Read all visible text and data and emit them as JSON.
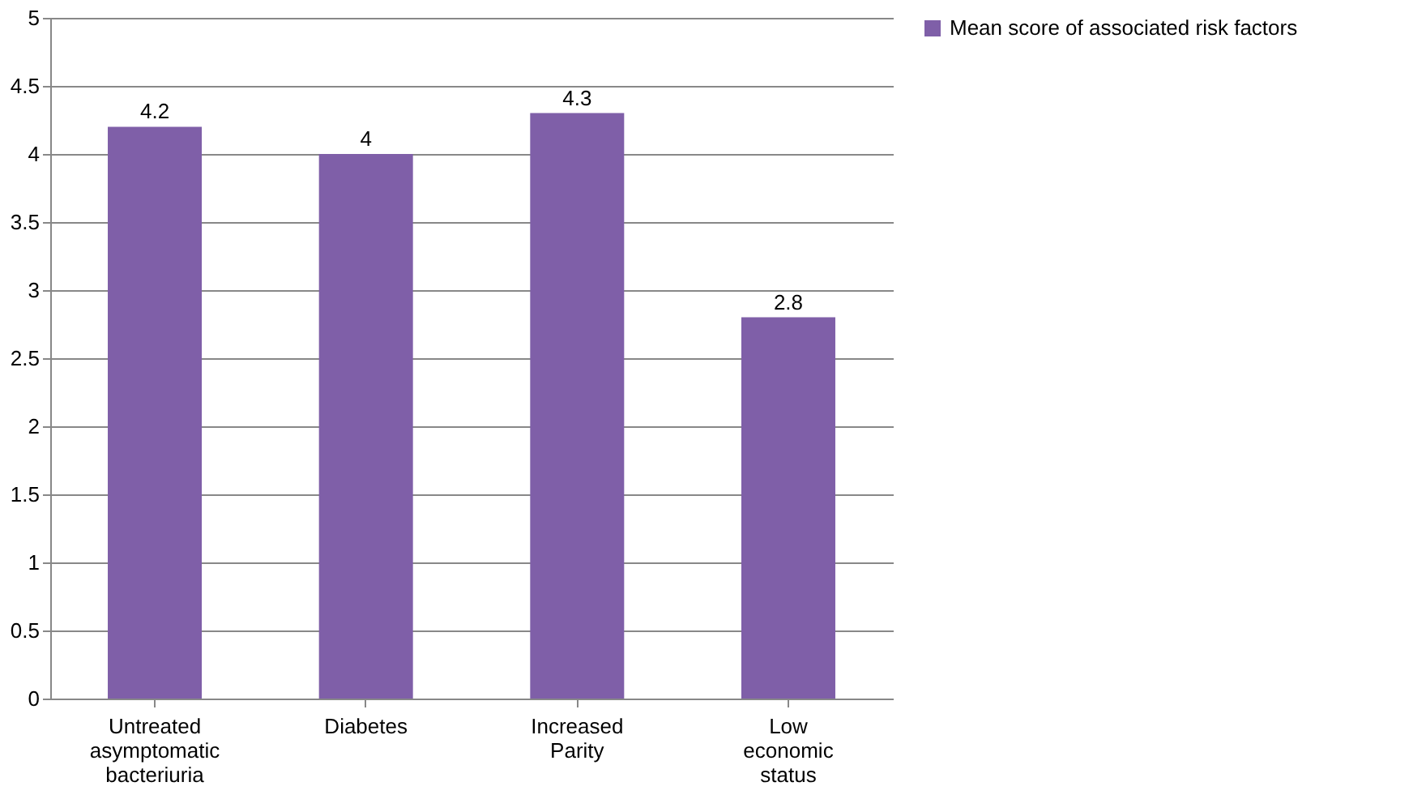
{
  "chart_data": {
    "type": "bar",
    "categories": [
      "Untreated asymptomatic bacteriuria",
      "Diabetes",
      "Increased Parity",
      "Low economic status"
    ],
    "series": [
      {
        "name": "Mean score of associated risk factors",
        "color": "#7f5fa8",
        "values": [
          4.2,
          4,
          4.3,
          2.8
        ]
      }
    ],
    "ylim": [
      0,
      5
    ],
    "yticks": [
      0,
      0.5,
      1,
      1.5,
      2,
      2.5,
      3,
      3.5,
      4,
      4.5,
      5
    ],
    "grid": "y",
    "legend": "right",
    "data_labels": true
  }
}
